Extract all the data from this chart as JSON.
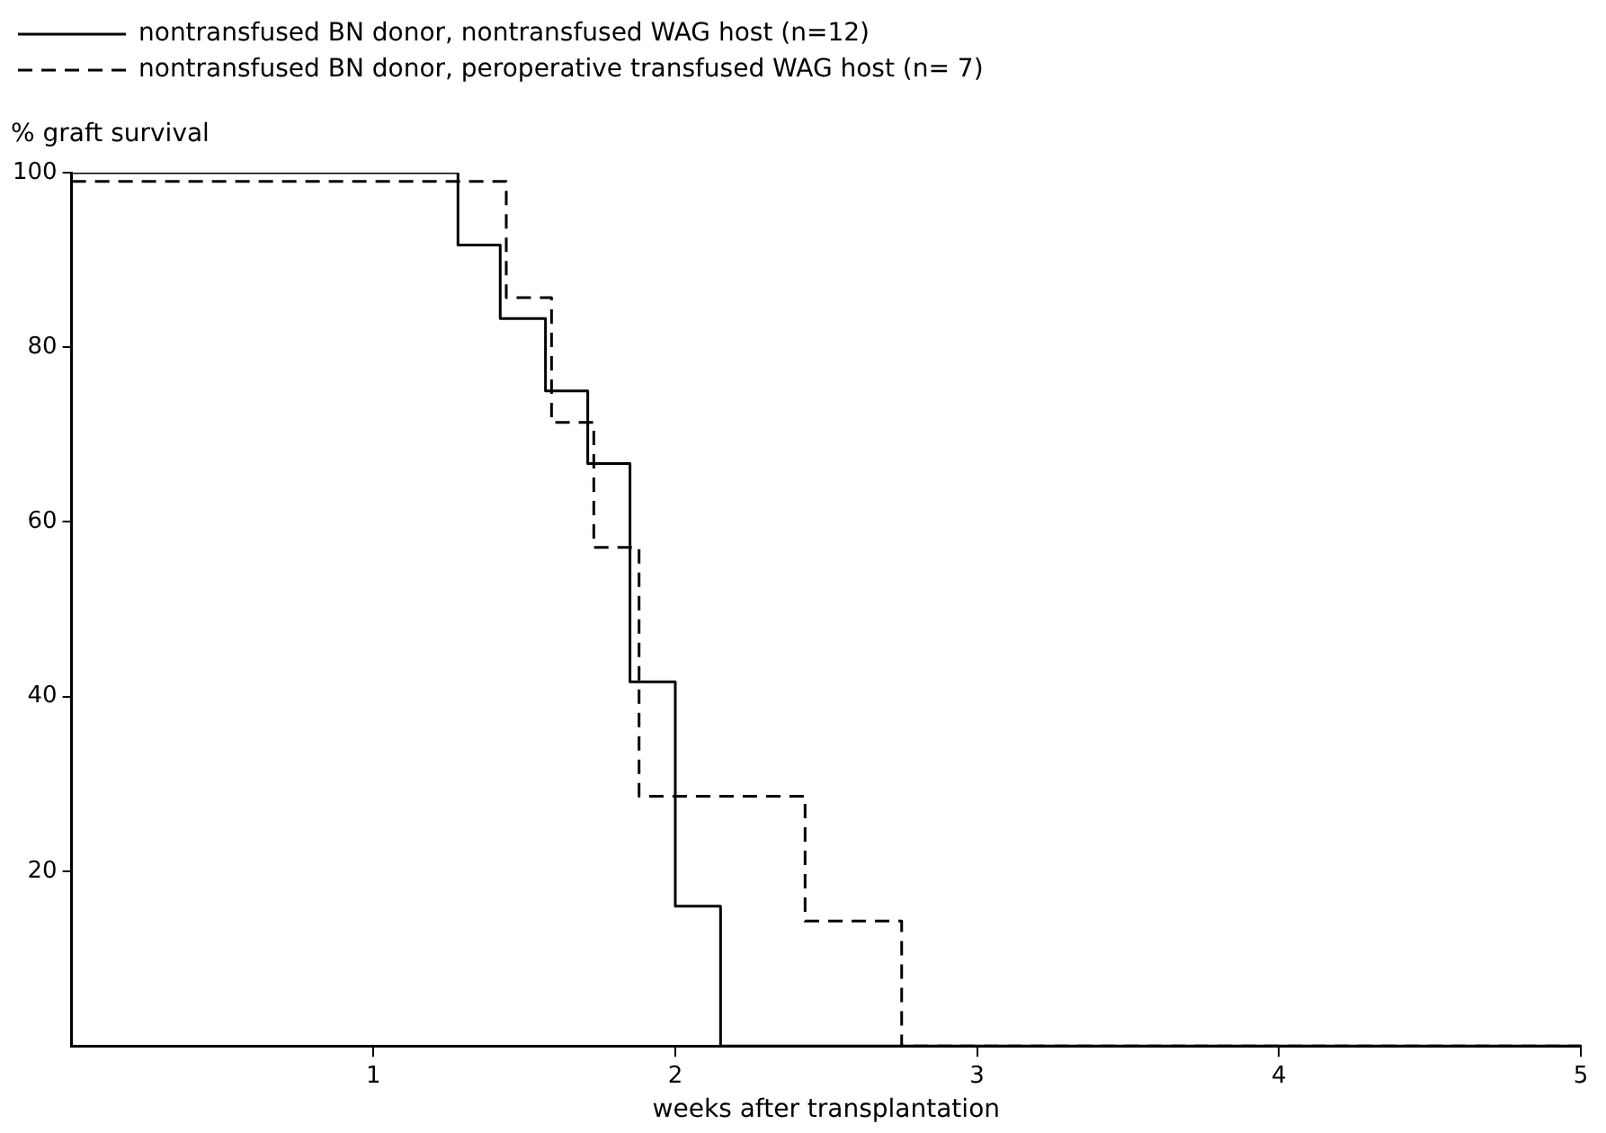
{
  "chart_data": {
    "type": "step",
    "xlabel": "weeks after transplantation",
    "ylabel": "% graft survival",
    "xlim": [
      0,
      5
    ],
    "xticks": [
      1,
      2,
      3,
      4,
      5
    ],
    "ylim": [
      0,
      100
    ],
    "yticks": [
      20,
      40,
      60,
      80,
      100
    ],
    "grid": false,
    "legend": "top",
    "marker": "none",
    "series": [
      {
        "name": "nontransfused BN donor, nontransfused WAG host (n=12)",
        "color": "#000000",
        "line_style": "solid",
        "x": [
          0,
          1.28,
          1.42,
          1.57,
          1.71,
          1.85,
          2.0,
          2.15,
          5
        ],
        "values": [
          100,
          91.7,
          83.3,
          75,
          66.7,
          41.7,
          16,
          0,
          0
        ]
      },
      {
        "name": "nontransfused BN donor, peroperative transfused WAG host (n= 7)",
        "color": "#000000",
        "line_style": "dashed",
        "x": [
          0,
          1.44,
          1.59,
          1.73,
          1.88,
          2.43,
          2.75,
          5
        ],
        "values": [
          99,
          85.7,
          71.4,
          57.1,
          28.6,
          14.3,
          0,
          0
        ]
      }
    ]
  }
}
